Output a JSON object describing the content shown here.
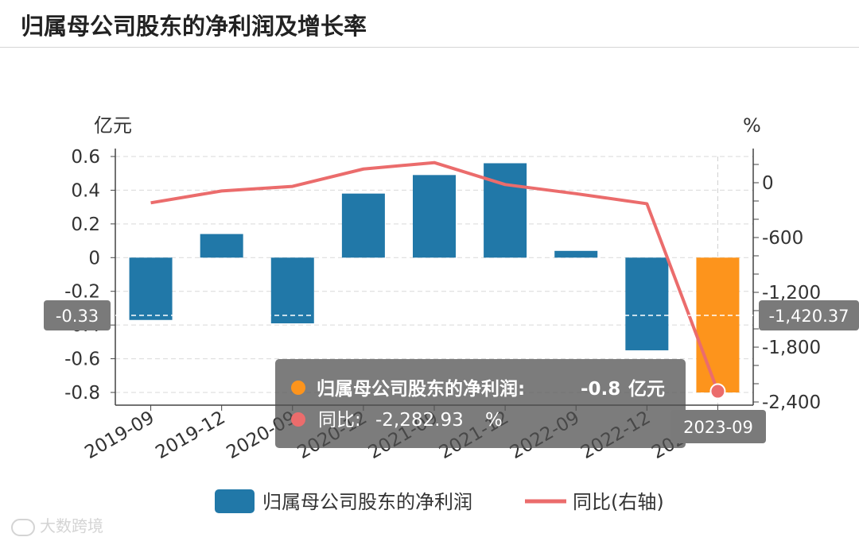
{
  "header": {
    "title": "归属母公司股东的净利润及增长率"
  },
  "chart_data": {
    "type": "bar+line",
    "title": "归属母公司股东的净利润及增长率",
    "categories": [
      "2019-09",
      "2019-12",
      "2020-09",
      "2020-12",
      "2021-09",
      "2021-12",
      "2022-09",
      "2022-12",
      "2023-09"
    ],
    "series": [
      {
        "name": "归属母公司股东的净利润",
        "type": "bar",
        "axis": "left",
        "color": "#2178a8",
        "highlight_color": "#fd941c",
        "values": [
          -0.37,
          0.14,
          -0.39,
          0.38,
          0.49,
          0.56,
          0.04,
          -0.55,
          -0.8
        ]
      },
      {
        "name": "同比(右轴)",
        "type": "line",
        "axis": "right",
        "color": "#eb6c6c",
        "values": [
          -220,
          -90,
          -40,
          150,
          220,
          -20,
          -120,
          -230,
          -2282.93
        ]
      }
    ],
    "left_axis": {
      "label": "亿元",
      "min": -0.8,
      "max": 0.6,
      "ticks": [
        "0.6",
        "0.4",
        "0.2",
        "0",
        "-0.2",
        "-0.4",
        "-0.6",
        "-0.8"
      ]
    },
    "right_axis": {
      "label": "%",
      "min": -2400,
      "max": 300,
      "ticks": [
        "0",
        "-600",
        "-1,200",
        "-1,800",
        "-2,400"
      ]
    },
    "crosshair": {
      "left_value": "-0.33",
      "right_value": "-1,420.37",
      "category": "2023-09"
    },
    "tooltip": {
      "row1": {
        "label": "归属母公司股东的净利润:",
        "value": "-0.8",
        "unit": "亿元"
      },
      "row2": {
        "label": "同比:",
        "value": "-2,282.93",
        "unit": "%"
      }
    },
    "legend": {
      "bar_label": "归属母公司股东的净利润",
      "line_label": "同比(右轴)"
    }
  },
  "watermark": {
    "text": "大数跨境"
  }
}
